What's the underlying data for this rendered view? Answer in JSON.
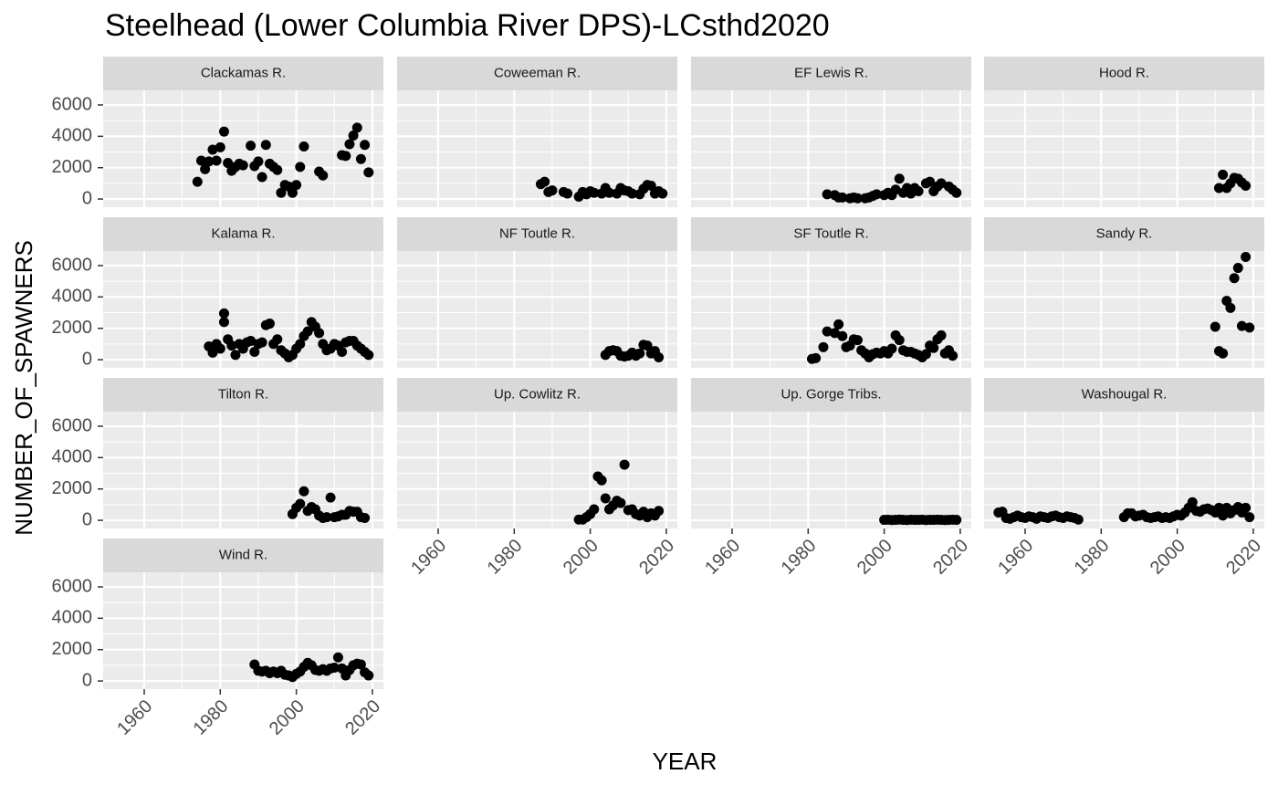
{
  "chart_data": {
    "type": "scatter",
    "title": "Steelhead (Lower Columbia River DPS)-LCsthd2020",
    "xlabel": "YEAR",
    "ylabel": "NUMBER_OF_SPAWNERS",
    "color": "#000000",
    "grid": true,
    "xlim": [
      1949.2,
      2022.9
    ],
    "xticks": [
      1960,
      1980,
      2000,
      2020
    ],
    "ylim": [
      -520,
      6930
    ],
    "yticks": [
      0,
      2000,
      4000,
      6000
    ],
    "series": [
      {
        "name": "Clackamas R.",
        "x": [
          1974,
          1975,
          1976,
          1977,
          1978,
          1979,
          1980,
          1981,
          1982,
          1983,
          1984,
          1985,
          1986,
          1988,
          1989,
          1990,
          1991,
          1992,
          1993,
          1994,
          1995,
          1996,
          1997,
          1998,
          1999,
          2000,
          2001,
          2002,
          2006,
          2007,
          2012,
          2013,
          2014,
          2015,
          2016,
          2017,
          2018,
          2019
        ],
        "values": [
          1100,
          2450,
          1900,
          2400,
          3150,
          2450,
          3300,
          4300,
          2300,
          1800,
          2050,
          2250,
          2150,
          3400,
          2100,
          2400,
          1400,
          3450,
          2250,
          2050,
          1850,
          400,
          900,
          800,
          400,
          900,
          2050,
          3350,
          1750,
          1500,
          2800,
          2750,
          3500,
          4050,
          4550,
          2550,
          3450,
          1700
        ]
      },
      {
        "name": "Coweeman R.",
        "x": [
          1987,
          1988,
          1989,
          1990,
          1993,
          1994,
          1997,
          1998,
          1999,
          2000,
          2001,
          2003,
          2004,
          2005,
          2007,
          2008,
          2009,
          2010,
          2011,
          2013,
          2014,
          2015,
          2016,
          2017,
          2018,
          2019
        ],
        "values": [
          950,
          1100,
          450,
          550,
          450,
          350,
          150,
          450,
          300,
          500,
          400,
          350,
          700,
          400,
          350,
          700,
          550,
          500,
          350,
          300,
          650,
          900,
          850,
          350,
          500,
          350
        ]
      },
      {
        "name": "EF Lewis R.",
        "x": [
          1985,
          1987,
          1988,
          1989,
          1991,
          1992,
          1993,
          1995,
          1996,
          1997,
          1998,
          2000,
          2001,
          2002,
          2003,
          2004,
          2005,
          2006,
          2007,
          2008,
          2009,
          2011,
          2012,
          2013,
          2014,
          2015,
          2017,
          2018,
          2019
        ],
        "values": [
          300,
          250,
          100,
          100,
          50,
          100,
          50,
          50,
          100,
          200,
          300,
          250,
          400,
          250,
          600,
          1300,
          400,
          700,
          350,
          700,
          500,
          1000,
          1100,
          500,
          800,
          1000,
          800,
          600,
          400
        ]
      },
      {
        "name": "Hood R.",
        "x": [
          2011,
          2012,
          2013,
          2014,
          2015,
          2016,
          2017,
          2018
        ],
        "values": [
          700,
          1550,
          700,
          1000,
          1350,
          1300,
          1050,
          850
        ]
      },
      {
        "name": "Kalama R.",
        "x": [
          1977,
          1978,
          1979,
          1980,
          1981,
          1981,
          1982,
          1983,
          1984,
          1985,
          1986,
          1987,
          1988,
          1989,
          1990,
          1991,
          1992,
          1993,
          1994,
          1995,
          1996,
          1997,
          1998,
          1999,
          2000,
          2001,
          2002,
          2003,
          2004,
          2005,
          2006,
          2007,
          2008,
          2009,
          2010,
          2011,
          2012,
          2013,
          2014,
          2015,
          2016,
          2017,
          2018,
          2019
        ],
        "values": [
          850,
          450,
          1000,
          700,
          2950,
          2400,
          1300,
          900,
          300,
          1000,
          700,
          1100,
          1200,
          500,
          1000,
          1100,
          2200,
          2300,
          1000,
          1300,
          600,
          400,
          150,
          300,
          700,
          1000,
          1500,
          1800,
          2400,
          2100,
          1700,
          1000,
          600,
          700,
          1000,
          900,
          500,
          1100,
          1200,
          1200,
          900,
          700,
          500,
          300
        ]
      },
      {
        "name": "NF Toutle R.",
        "x": [
          2004,
          2005,
          2006,
          2007,
          2008,
          2009,
          2010,
          2011,
          2012,
          2013,
          2014,
          2015,
          2016,
          2017,
          2018
        ],
        "values": [
          300,
          550,
          600,
          550,
          250,
          200,
          250,
          450,
          250,
          400,
          950,
          900,
          400,
          550,
          150
        ]
      },
      {
        "name": "SF Toutle R.",
        "x": [
          1981,
          1982,
          1984,
          1985,
          1987,
          1988,
          1989,
          1990,
          1991,
          1992,
          1993,
          1994,
          1995,
          1996,
          1997,
          1998,
          1999,
          2000,
          2001,
          2002,
          2003,
          2004,
          2005,
          2006,
          2007,
          2008,
          2009,
          2010,
          2011,
          2012,
          2013,
          2014,
          2015,
          2016,
          2017,
          2018
        ],
        "values": [
          50,
          100,
          800,
          1800,
          1700,
          2250,
          1500,
          800,
          900,
          1300,
          1250,
          600,
          400,
          150,
          350,
          450,
          400,
          550,
          400,
          700,
          1550,
          1250,
          600,
          500,
          500,
          400,
          300,
          150,
          350,
          900,
          750,
          1300,
          1550,
          400,
          600,
          250
        ]
      },
      {
        "name": "Sandy R.",
        "x": [
          2010,
          2011,
          2012,
          2013,
          2014,
          2015,
          2016,
          2017,
          2018,
          2019
        ],
        "values": [
          2100,
          550,
          400,
          3750,
          3300,
          5200,
          5850,
          2150,
          6550,
          2050
        ]
      },
      {
        "name": "Tilton R.",
        "x": [
          1999,
          2000,
          2001,
          2002,
          2003,
          2004,
          2005,
          2006,
          2007,
          2008,
          2009,
          2010,
          2011,
          2012,
          2013,
          2014,
          2015,
          2016,
          2017,
          2018
        ],
        "values": [
          400,
          800,
          1050,
          1850,
          600,
          850,
          700,
          300,
          150,
          200,
          1450,
          200,
          250,
          350,
          350,
          600,
          550,
          550,
          200,
          150
        ]
      },
      {
        "name": "Up. Cowlitz R.",
        "x": [
          1997,
          1998,
          1999,
          2000,
          2001,
          2002,
          2003,
          2004,
          2005,
          2006,
          2007,
          2008,
          2009,
          2010,
          2011,
          2012,
          2013,
          2014,
          2015,
          2016,
          2017,
          2018
        ],
        "values": [
          50,
          50,
          200,
          400,
          700,
          2800,
          2550,
          1400,
          700,
          950,
          1250,
          1100,
          3550,
          650,
          700,
          400,
          300,
          550,
          200,
          450,
          300,
          600
        ]
      },
      {
        "name": "Up. Gorge Tribs.",
        "x": [
          2000,
          2001,
          2002,
          2003,
          2004,
          2005,
          2006,
          2007,
          2008,
          2009,
          2010,
          2011,
          2012,
          2013,
          2014,
          2015,
          2016,
          2017,
          2018,
          2019
        ],
        "values": [
          30,
          40,
          20,
          30,
          50,
          30,
          20,
          40,
          30,
          30,
          40,
          20,
          30,
          30,
          40,
          30,
          20,
          30,
          40,
          30
        ]
      },
      {
        "name": "Washougal R.",
        "x": [
          1953,
          1954,
          1955,
          1956,
          1957,
          1958,
          1959,
          1960,
          1961,
          1962,
          1963,
          1964,
          1965,
          1966,
          1967,
          1968,
          1969,
          1970,
          1971,
          1972,
          1973,
          1974,
          1986,
          1987,
          1988,
          1989,
          1990,
          1991,
          1992,
          1993,
          1994,
          1995,
          1996,
          1997,
          1998,
          1999,
          2000,
          2001,
          2002,
          2003,
          2004,
          2005,
          2006,
          2007,
          2008,
          2009,
          2010,
          2011,
          2012,
          2013,
          2014,
          2015,
          2016,
          2017,
          2018,
          2019
        ],
        "values": [
          500,
          550,
          150,
          100,
          200,
          300,
          200,
          150,
          250,
          200,
          100,
          250,
          200,
          150,
          250,
          300,
          200,
          150,
          250,
          200,
          150,
          50,
          200,
          450,
          450,
          250,
          300,
          350,
          200,
          150,
          200,
          250,
          150,
          200,
          150,
          250,
          350,
          300,
          500,
          800,
          1150,
          600,
          550,
          700,
          750,
          650,
          500,
          800,
          300,
          800,
          450,
          650,
          850,
          500,
          800,
          200
        ]
      },
      {
        "name": "Wind R.",
        "x": [
          1989,
          1990,
          1991,
          1992,
          1993,
          1994,
          1995,
          1996,
          1997,
          1998,
          1999,
          2000,
          2001,
          2002,
          2003,
          2004,
          2005,
          2006,
          2007,
          2008,
          2009,
          2010,
          2011,
          2012,
          2013,
          2014,
          2015,
          2016,
          2017,
          2018,
          2019
        ],
        "values": [
          1050,
          650,
          600,
          650,
          500,
          600,
          500,
          650,
          400,
          350,
          250,
          450,
          600,
          900,
          1150,
          1000,
          700,
          650,
          750,
          650,
          800,
          850,
          1500,
          800,
          350,
          700,
          1000,
          1100,
          1050,
          550,
          350
        ]
      }
    ]
  }
}
